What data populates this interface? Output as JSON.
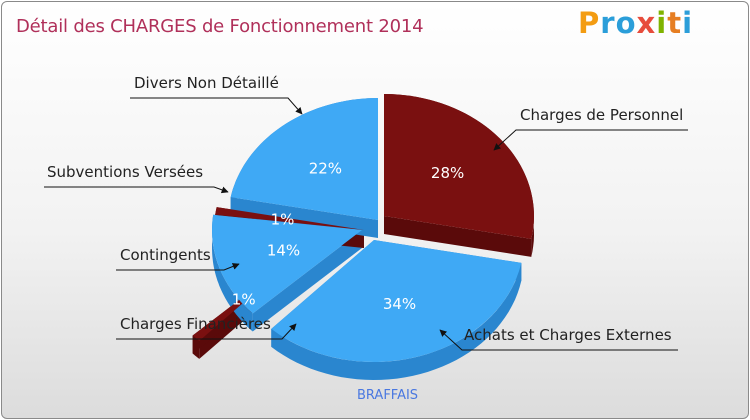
{
  "header": {
    "title": "Détail des CHARGES de Fonctionnement 2014",
    "logo": [
      "P",
      "r",
      "o",
      "x",
      "i",
      "t",
      "i"
    ],
    "logo_colors": [
      "#f39c12",
      "#2b9ed9",
      "#2b9ed9",
      "#e74c3c",
      "#7fb300",
      "#e67e22",
      "#2b9ed9"
    ]
  },
  "footer": {
    "commune": "BRAFFAIS"
  },
  "colors": {
    "blue": "#3fa9f5",
    "blue_dark": "#2a86cf",
    "maroon": "#7a1010",
    "maroon_dark": "#5a0a0a"
  },
  "chart_data": {
    "type": "pie",
    "title": "Détail des CHARGES de Fonctionnement 2014",
    "slices": [
      {
        "name": "Charges de Personnel",
        "value": 28,
        "label": "28%",
        "color": "maroon"
      },
      {
        "name": "Achats et Charges Externes",
        "value": 34,
        "label": "34%",
        "color": "blue"
      },
      {
        "name": "Charges Financières",
        "value": 1,
        "label": "1%",
        "color": "maroon"
      },
      {
        "name": "Contingents",
        "value": 14,
        "label": "14%",
        "color": "blue"
      },
      {
        "name": "Subventions Versées",
        "value": 1,
        "label": "1%",
        "color": "maroon"
      },
      {
        "name": "Divers Non Détaillé",
        "value": 22,
        "label": "22%",
        "color": "blue"
      }
    ]
  }
}
